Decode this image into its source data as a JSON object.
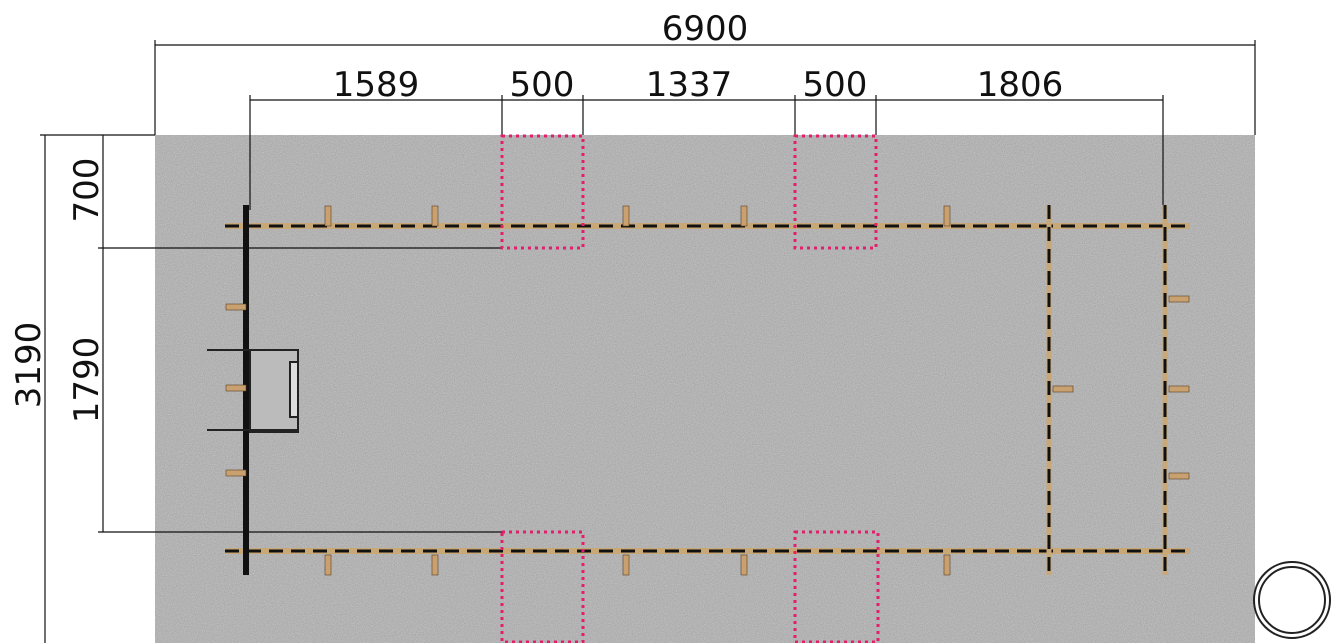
{
  "dimensions": {
    "overall_width": "6900",
    "segments": [
      "1589",
      "500",
      "1337",
      "500",
      "1806"
    ],
    "overall_height": "3190",
    "top_offset": "700",
    "inner_height": "1790"
  }
}
